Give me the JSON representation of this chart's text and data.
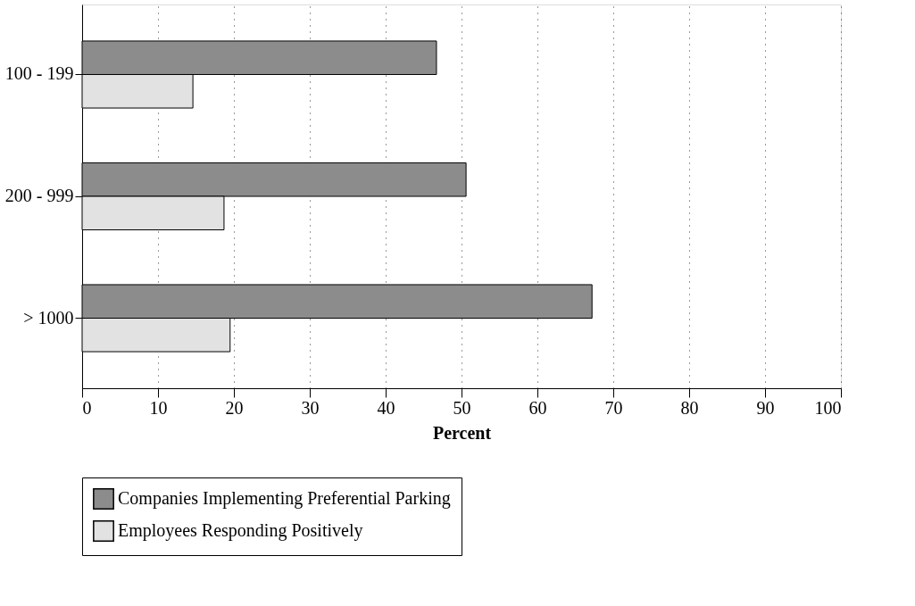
{
  "chart_data": {
    "type": "bar",
    "orientation": "horizontal",
    "xlabel": "Percent",
    "categories": [
      "100 - 199",
      "200 - 999",
      "> 1000"
    ],
    "series": [
      {
        "name": "Companies Implementing Preferential Parking",
        "color": "#8c8c8c",
        "values": [
          46.7,
          50.6,
          67.2
        ]
      },
      {
        "name": "Employees Responding Positively",
        "color": "#e2e2e2",
        "values": [
          14.6,
          18.7,
          19.5
        ]
      }
    ],
    "xlim": [
      0,
      100
    ],
    "xticks": [
      0,
      10,
      20,
      30,
      40,
      50,
      60,
      70,
      80,
      90,
      100
    ],
    "grid": "x",
    "legend": "bottom"
  }
}
